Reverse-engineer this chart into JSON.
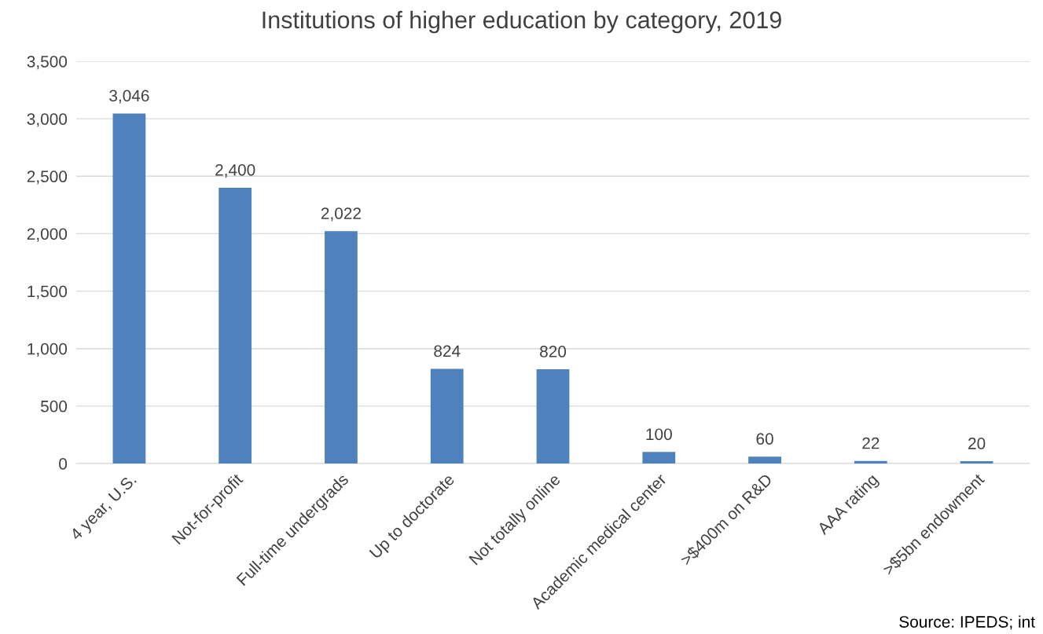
{
  "chart_data": {
    "type": "bar",
    "title": "Institutions of higher education by category, 2019",
    "categories": [
      "4 year, U.S.",
      "Not-for-profit",
      "Full-time undergrads",
      "Up to doctorate",
      "Not totally online",
      "Academic medical center",
      ">$400m on R&D",
      "AAA rating",
      ">$5bn endowment"
    ],
    "values": [
      3046,
      2400,
      2022,
      824,
      820,
      100,
      60,
      22,
      20
    ],
    "value_labels": [
      "3,046",
      "2,400",
      "2,022",
      "824",
      "820",
      "100",
      "60",
      "22",
      "20"
    ],
    "color": "#4f81bd",
    "ylim": [
      0,
      3500
    ],
    "yticks": [
      {
        "value": 0,
        "label": "0"
      },
      {
        "value": 500,
        "label": "500"
      },
      {
        "value": 1000,
        "label": "1,000"
      },
      {
        "value": 1500,
        "label": "1,500"
      },
      {
        "value": 2000,
        "label": "2,000"
      },
      {
        "value": 2500,
        "label": "2,500"
      },
      {
        "value": 3000,
        "label": "3,000"
      },
      {
        "value": 3500,
        "label": "3,500"
      }
    ],
    "grid": "y",
    "annotations": [
      "Source: IPEDS; int"
    ]
  }
}
